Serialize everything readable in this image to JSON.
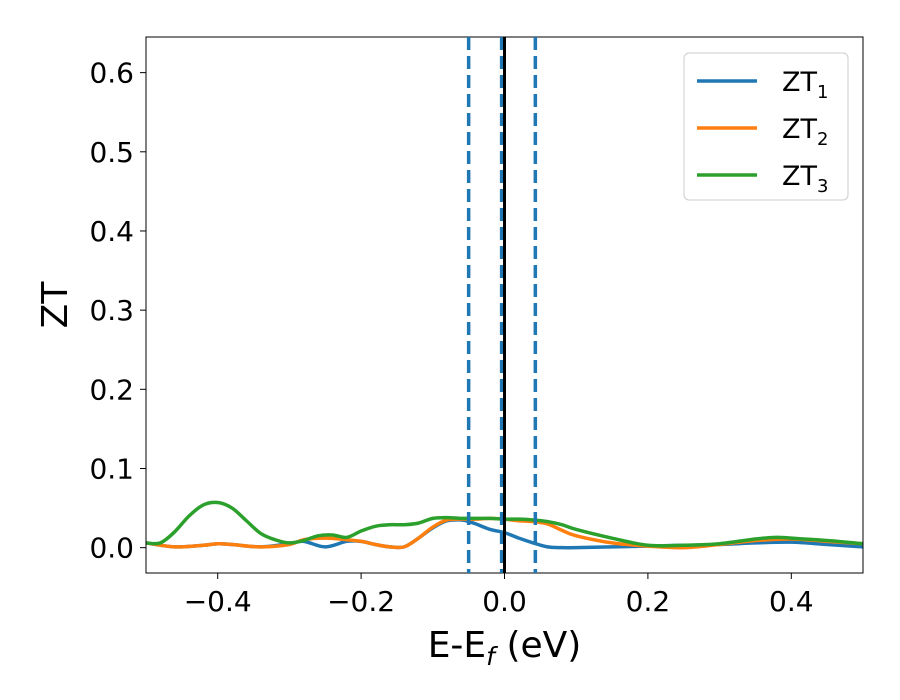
{
  "chart_data": {
    "type": "line",
    "title": "",
    "xlabel": "E-E",
    "xlabel_sub": "f",
    "xlabel_unit": "(eV)",
    "ylabel": "ZT",
    "xlim": [
      -0.5,
      0.5
    ],
    "ylim": [
      -0.032,
      0.645
    ],
    "xticks": [
      -0.4,
      -0.2,
      0.0,
      0.2,
      0.4
    ],
    "xtick_labels": [
      "−0.4",
      "−0.2",
      "0.0",
      "0.2",
      "0.4"
    ],
    "yticks": [
      0.0,
      0.1,
      0.2,
      0.3,
      0.4,
      0.5,
      0.6
    ],
    "ytick_labels": [
      "0.0",
      "0.1",
      "0.2",
      "0.3",
      "0.4",
      "0.5",
      "0.6"
    ],
    "grid": false,
    "legend_position": "top-right",
    "vlines": [
      {
        "x": -0.05,
        "style": "dashed",
        "color": "#1f77b4"
      },
      {
        "x": -0.004,
        "style": "dashed",
        "color": "#1f77b4"
      },
      {
        "x": 0.043,
        "style": "dashed",
        "color": "#1f77b4"
      },
      {
        "x": 0.0,
        "style": "solid",
        "color": "#000000"
      }
    ],
    "series": [
      {
        "name": "ZT",
        "name_sub": "1",
        "color": "#1f77b4",
        "x": [
          -0.5,
          -0.46,
          -0.42,
          -0.4,
          -0.38,
          -0.34,
          -0.3,
          -0.28,
          -0.25,
          -0.22,
          -0.2,
          -0.18,
          -0.16,
          -0.14,
          -0.12,
          -0.1,
          -0.08,
          -0.06,
          -0.05,
          -0.04,
          -0.02,
          0.0,
          0.02,
          0.04,
          0.06,
          0.08,
          0.1,
          0.15,
          0.2,
          0.25,
          0.3,
          0.35,
          0.4,
          0.45,
          0.5
        ],
        "y": [
          0.006,
          0.001,
          0.003,
          0.005,
          0.004,
          0.001,
          0.005,
          0.008,
          0.001,
          0.008,
          0.008,
          0.004,
          0.001,
          0.001,
          0.012,
          0.025,
          0.034,
          0.035,
          0.033,
          0.03,
          0.023,
          0.019,
          0.012,
          0.006,
          0.001,
          0.0,
          0.0,
          0.001,
          0.002,
          0.003,
          0.004,
          0.006,
          0.007,
          0.004,
          0.001
        ]
      },
      {
        "name": "ZT",
        "name_sub": "2",
        "color": "#ff7f0e",
        "x": [
          -0.5,
          -0.46,
          -0.42,
          -0.4,
          -0.38,
          -0.34,
          -0.3,
          -0.28,
          -0.25,
          -0.22,
          -0.2,
          -0.18,
          -0.16,
          -0.14,
          -0.12,
          -0.1,
          -0.08,
          -0.06,
          -0.05,
          -0.04,
          -0.02,
          0.0,
          0.02,
          0.04,
          0.06,
          0.08,
          0.1,
          0.15,
          0.2,
          0.25,
          0.3,
          0.35,
          0.4,
          0.45,
          0.5
        ],
        "y": [
          0.006,
          0.001,
          0.003,
          0.005,
          0.004,
          0.001,
          0.004,
          0.01,
          0.012,
          0.01,
          0.008,
          0.004,
          0.001,
          0.001,
          0.012,
          0.026,
          0.035,
          0.036,
          0.036,
          0.036,
          0.037,
          0.036,
          0.034,
          0.033,
          0.03,
          0.022,
          0.015,
          0.006,
          0.002,
          0.0,
          0.004,
          0.009,
          0.011,
          0.008,
          0.005
        ]
      },
      {
        "name": "ZT",
        "name_sub": "3",
        "color": "#2ca02c",
        "x": [
          -0.5,
          -0.48,
          -0.46,
          -0.44,
          -0.42,
          -0.4,
          -0.38,
          -0.36,
          -0.34,
          -0.32,
          -0.3,
          -0.28,
          -0.26,
          -0.24,
          -0.22,
          -0.2,
          -0.18,
          -0.16,
          -0.14,
          -0.12,
          -0.1,
          -0.08,
          -0.06,
          -0.04,
          -0.02,
          0.0,
          0.02,
          0.04,
          0.06,
          0.08,
          0.1,
          0.15,
          0.2,
          0.25,
          0.3,
          0.35,
          0.38,
          0.4,
          0.45,
          0.5
        ],
        "y": [
          0.006,
          0.006,
          0.02,
          0.04,
          0.054,
          0.057,
          0.05,
          0.034,
          0.018,
          0.01,
          0.006,
          0.009,
          0.015,
          0.016,
          0.013,
          0.021,
          0.027,
          0.029,
          0.029,
          0.031,
          0.037,
          0.038,
          0.037,
          0.037,
          0.037,
          0.036,
          0.036,
          0.035,
          0.033,
          0.029,
          0.023,
          0.012,
          0.003,
          0.003,
          0.005,
          0.011,
          0.013,
          0.012,
          0.009,
          0.005
        ]
      }
    ]
  }
}
